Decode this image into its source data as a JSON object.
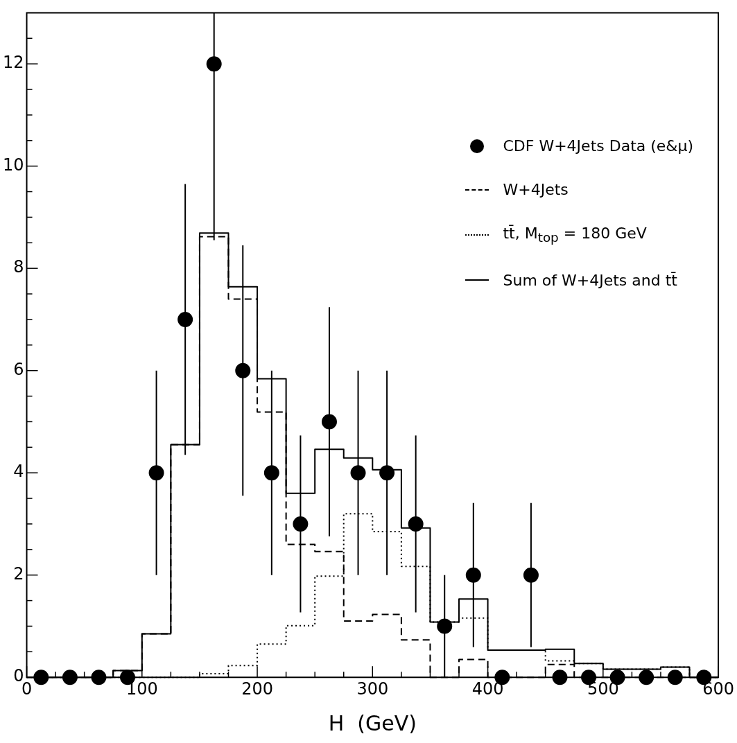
{
  "chart_data": {
    "type": "histogram",
    "xlabel": "H  (GeV)",
    "bins": [
      0,
      25,
      50,
      75,
      100,
      125,
      150,
      175,
      200,
      225,
      250,
      275,
      300,
      325,
      350,
      375,
      400,
      425,
      450,
      475,
      500,
      525,
      550,
      575,
      600
    ],
    "series": [
      {
        "name": "CDF W+4Jets Data (e&μ)",
        "type": "scatter",
        "color": "#000000",
        "marker": "circle",
        "x": [
          12.5,
          37.5,
          62.5,
          87.5,
          112.5,
          137.5,
          162.5,
          187.5,
          212.5,
          237.5,
          262.5,
          287.5,
          312.5,
          337.5,
          362.5,
          387.5,
          412.5,
          437.5,
          462.5,
          487.5,
          512.5,
          537.5,
          562.5,
          587.5
        ],
        "values": [
          0,
          0,
          0,
          0,
          4,
          7,
          12,
          6,
          4,
          3,
          5,
          4,
          4,
          3,
          1,
          2,
          0,
          2,
          0,
          0,
          0,
          0,
          0,
          0
        ],
        "errors": [
          null,
          null,
          null,
          null,
          2,
          2.65,
          [
            8.55,
            13
          ],
          2.45,
          2,
          1.73,
          2.24,
          2,
          2,
          1.73,
          1,
          1.41,
          null,
          1.41,
          null,
          null,
          null,
          null,
          null,
          null
        ]
      },
      {
        "name": "W+4Jets",
        "color": "#000000",
        "line_style": "dashed",
        "values": [
          0,
          0,
          0,
          0.13,
          0.85,
          4.55,
          8.62,
          7.4,
          5.19,
          2.6,
          2.46,
          1.1,
          1.23,
          0.73,
          0,
          0.35,
          0,
          0,
          0.25,
          0,
          0,
          0,
          0,
          0
        ]
      },
      {
        "name": "tt̄,  M$_{top}$ = 180 GeV",
        "color": "#000000",
        "line_style": "dotted",
        "values": [
          0,
          0,
          0,
          0,
          0,
          0,
          0.07,
          0.23,
          0.65,
          1.01,
          1.98,
          3.2,
          2.85,
          2.17,
          1.08,
          1.16,
          0.53,
          0.53,
          0.32,
          0.27,
          0.16,
          0.16,
          0.2,
          0
        ]
      },
      {
        "name": "Sum of W+4Jets and tt̄",
        "color": "#000000",
        "line_style": "solid",
        "values": [
          0,
          0,
          0,
          0.13,
          0.85,
          4.55,
          8.69,
          7.64,
          5.84,
          3.6,
          4.46,
          4.29,
          4.06,
          2.92,
          1.08,
          1.53,
          0.53,
          0.53,
          0.55,
          0.27,
          0.16,
          0.16,
          0.2,
          0
        ]
      }
    ],
    "xlim": [
      0,
      600
    ],
    "xticks": [
      0,
      {
        "value": 25,
        "label": null
      },
      {
        "value": 50,
        "label": null
      },
      {
        "value": 75,
        "label": null
      },
      100,
      {
        "value": 125,
        "label": null
      },
      {
        "value": 150,
        "label": null
      },
      {
        "value": 175,
        "label": null
      },
      200,
      {
        "value": 225,
        "label": null
      },
      {
        "value": 250,
        "label": null
      },
      {
        "value": 275,
        "label": null
      },
      300,
      {
        "value": 325,
        "label": null
      },
      {
        "value": 350,
        "label": null
      },
      {
        "value": 375,
        "label": null
      },
      400,
      {
        "value": 425,
        "label": null
      },
      {
        "value": 450,
        "label": null
      },
      {
        "value": 475,
        "label": null
      },
      500,
      {
        "value": 525,
        "label": null
      },
      {
        "value": 550,
        "label": null
      },
      {
        "value": 575,
        "label": null
      },
      600
    ],
    "ylim": [
      0,
      13
    ],
    "yticks": [
      0,
      {
        "value": 0.5,
        "label": null
      },
      {
        "value": 1,
        "label": null
      },
      {
        "value": 1.5,
        "label": null
      },
      2,
      {
        "value": 2.5,
        "label": null
      },
      {
        "value": 3,
        "label": null
      },
      {
        "value": 3.5,
        "label": null
      },
      4,
      {
        "value": 4.5,
        "label": null
      },
      {
        "value": 5,
        "label": null
      },
      {
        "value": 5.5,
        "label": null
      },
      6,
      {
        "value": 6.5,
        "label": null
      },
      {
        "value": 7,
        "label": null
      },
      {
        "value": 7.5,
        "label": null
      },
      8,
      {
        "value": 8.5,
        "label": null
      },
      {
        "value": 9,
        "label": null
      },
      {
        "value": 9.5,
        "label": null
      },
      10,
      {
        "value": 10.5,
        "label": null
      },
      {
        "value": 11,
        "label": null
      },
      {
        "value": 11.5,
        "label": null
      },
      12,
      {
        "value": 12.5,
        "label": null
      }
    ],
    "grid": false,
    "legend": "top right"
  }
}
